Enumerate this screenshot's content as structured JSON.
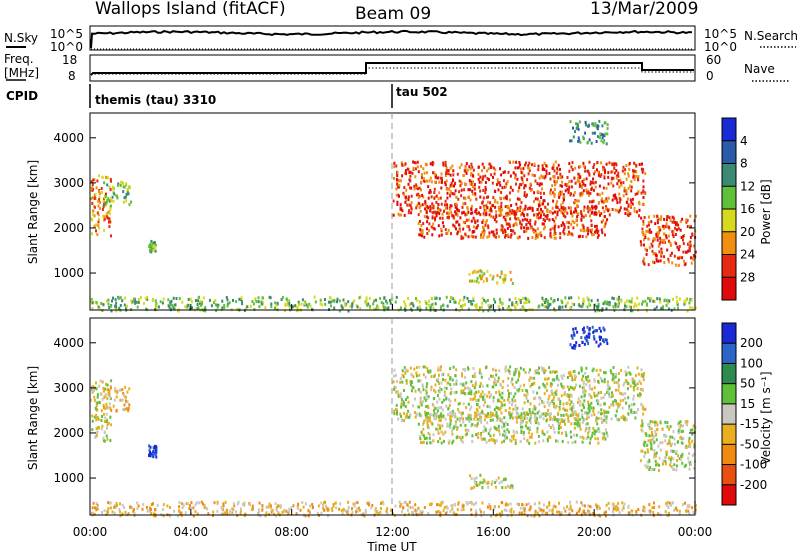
{
  "header": {
    "station": "Wallops Island (fitACF)",
    "beam": "Beam 09",
    "date": "13/Mar/2009"
  },
  "nsky_panel": {
    "left_label": "N.Sky",
    "right_label": "N.Search",
    "left_ticks": [
      "10^5",
      "10^0"
    ],
    "right_ticks": [
      "10^5",
      "10^0"
    ]
  },
  "freq_panel": {
    "left_label_line1": "Freq.",
    "left_label_line2": "[MHz]",
    "right_label": "Nave",
    "left_ticks": [
      "18",
      "8"
    ],
    "right_ticks": [
      "60",
      "0"
    ]
  },
  "cpid_panel": {
    "label": "CPID",
    "programs": [
      {
        "name": "themis (tau) 3310",
        "start_hour": 0
      },
      {
        "name": "tau 502",
        "start_hour": 12
      }
    ]
  },
  "chart_data": [
    {
      "type": "heatmap",
      "name": "power",
      "ylabel": "Slant Range [km]",
      "xlabel": "",
      "xlim_hours": [
        0,
        24
      ],
      "ylim": [
        180,
        4550
      ],
      "yticks": [
        1000,
        2000,
        3000,
        4000
      ],
      "colorbar": {
        "label": "Power [dB]",
        "tick_labels": [
          "4",
          "8",
          "12",
          "16",
          "20",
          "24",
          "28"
        ],
        "colors": [
          "#1a2bd6",
          "#2a5bab",
          "#3d8a72",
          "#5fc03a",
          "#d8d81e",
          "#f09010",
          "#e62a10",
          "#e00a0a"
        ]
      },
      "echo_regions": [
        {
          "t": [
            0.0,
            0.8
          ],
          "r": [
            1850,
            3200
          ],
          "level": 5
        },
        {
          "t": [
            0.5,
            1.6
          ],
          "r": [
            2500,
            3050
          ],
          "level": 3
        },
        {
          "t": [
            2.3,
            2.6
          ],
          "r": [
            1500,
            1750
          ],
          "level": 3
        },
        {
          "t": [
            12.0,
            22.0
          ],
          "r": [
            2300,
            3500
          ],
          "level": 6
        },
        {
          "t": [
            13.0,
            20.5
          ],
          "r": [
            1800,
            2500
          ],
          "level": 6
        },
        {
          "t": [
            21.8,
            24.0
          ],
          "r": [
            1200,
            2300
          ],
          "level": 6
        },
        {
          "t": [
            15.0,
            16.8
          ],
          "r": [
            800,
            1100
          ],
          "level": 4
        },
        {
          "t": [
            19.0,
            20.5
          ],
          "r": [
            3900,
            4400
          ],
          "level": 2
        },
        {
          "t": [
            0.0,
            24.0
          ],
          "r": [
            190,
            500
          ],
          "level": 3
        }
      ]
    },
    {
      "type": "heatmap",
      "name": "velocity",
      "ylabel": "Slant Range [km]",
      "xlabel": "Time UT",
      "xlim_hours": [
        0,
        24
      ],
      "ylim": [
        180,
        4550
      ],
      "yticks": [
        1000,
        2000,
        3000,
        4000
      ],
      "xtick_labels": [
        "00:00",
        "04:00",
        "08:00",
        "12:00",
        "16:00",
        "20:00",
        "00:00"
      ],
      "colorbar": {
        "label": "Velocity [m s⁻¹]",
        "tick_labels": [
          "200",
          "100",
          "50",
          "15",
          "-15",
          "-50",
          "-100",
          "-200"
        ],
        "colors": [
          "#1a2bd6",
          "#2a66c8",
          "#2f8a4f",
          "#5fc03a",
          "#c8c8c0",
          "#e8b020",
          "#f08a10",
          "#e85010",
          "#e00a0a"
        ]
      },
      "echo_regions": [
        {
          "t": [
            0.0,
            0.8
          ],
          "r": [
            1850,
            3200
          ],
          "level": 4
        },
        {
          "t": [
            0.5,
            1.6
          ],
          "r": [
            2500,
            3050
          ],
          "level": 5
        },
        {
          "t": [
            2.3,
            2.6
          ],
          "r": [
            1500,
            1750
          ],
          "level": 0
        },
        {
          "t": [
            12.0,
            22.0
          ],
          "r": [
            2300,
            3500
          ],
          "level": 4
        },
        {
          "t": [
            13.0,
            20.5
          ],
          "r": [
            1800,
            2500
          ],
          "level": 4
        },
        {
          "t": [
            21.8,
            24.0
          ],
          "r": [
            1200,
            2300
          ],
          "level": 4
        },
        {
          "t": [
            15.0,
            16.8
          ],
          "r": [
            800,
            1100
          ],
          "level": 4
        },
        {
          "t": [
            19.0,
            20.5
          ],
          "r": [
            3900,
            4400
          ],
          "level": 0
        },
        {
          "t": [
            0.0,
            24.0
          ],
          "r": [
            190,
            500
          ],
          "level": 5
        }
      ]
    }
  ]
}
